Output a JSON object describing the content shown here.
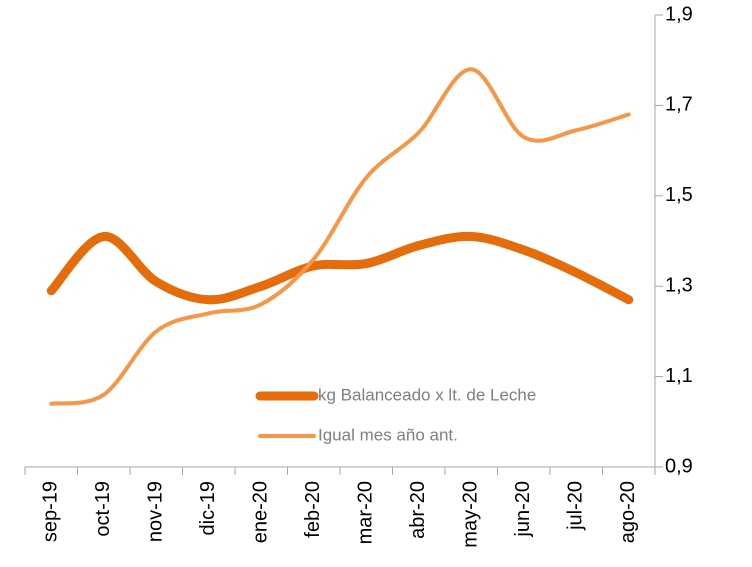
{
  "chart_data": {
    "type": "line",
    "categories": [
      "sep-19",
      "oct-19",
      "nov-19",
      "dic-19",
      "ene-20",
      "feb-20",
      "mar-20",
      "abr-20",
      "may-20",
      "jun-20",
      "jul-20",
      "ago-20"
    ],
    "series": [
      {
        "name": "kg Balanceado x lt. de Leche",
        "color": "#e46c0a",
        "width": 9,
        "values": [
          1.29,
          1.41,
          1.31,
          1.27,
          1.3,
          1.345,
          1.35,
          1.39,
          1.41,
          1.38,
          1.33,
          1.27
        ]
      },
      {
        "name": "Igual mes año ant.",
        "color": "#f79646",
        "width": 4,
        "values": [
          1.04,
          1.06,
          1.2,
          1.24,
          1.26,
          1.36,
          1.54,
          1.64,
          1.78,
          1.63,
          1.645,
          1.68
        ]
      }
    ],
    "ylim": [
      0.9,
      1.9
    ],
    "yticks": [
      {
        "value": 0.9,
        "label": "0,9"
      },
      {
        "value": 1.1,
        "label": "1,1"
      },
      {
        "value": 1.3,
        "label": "1,3"
      },
      {
        "value": 1.5,
        "label": "1,5"
      },
      {
        "value": 1.7,
        "label": "1,7"
      },
      {
        "value": 1.9,
        "label": "1,9"
      }
    ],
    "grid": false
  }
}
